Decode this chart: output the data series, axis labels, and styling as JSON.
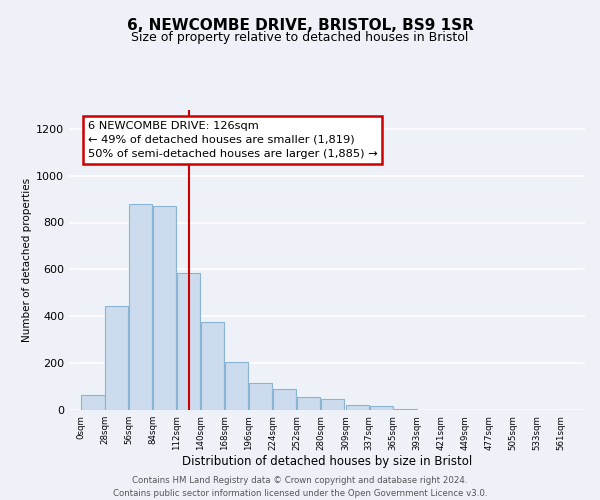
{
  "title": "6, NEWCOMBE DRIVE, BRISTOL, BS9 1SR",
  "subtitle": "Size of property relative to detached houses in Bristol",
  "xlabel": "Distribution of detached houses by size in Bristol",
  "ylabel": "Number of detached properties",
  "bar_left_edges": [
    0,
    28,
    56,
    84,
    112,
    140,
    168,
    196,
    224,
    252,
    280,
    309,
    337,
    365,
    393,
    421,
    449,
    477,
    505,
    533
  ],
  "bar_widths": [
    28,
    28,
    28,
    28,
    28,
    28,
    28,
    28,
    28,
    28,
    28,
    28,
    28,
    28,
    28,
    28,
    28,
    28,
    28,
    28
  ],
  "bar_heights": [
    65,
    445,
    880,
    870,
    585,
    375,
    205,
    115,
    90,
    55,
    45,
    20,
    15,
    5,
    2,
    0,
    0,
    0,
    0,
    0
  ],
  "bar_color": "#ccdcee",
  "bar_edgecolor": "#8ab4d4",
  "tick_labels": [
    "0sqm",
    "28sqm",
    "56sqm",
    "84sqm",
    "112sqm",
    "140sqm",
    "168sqm",
    "196sqm",
    "224sqm",
    "252sqm",
    "280sqm",
    "309sqm",
    "337sqm",
    "365sqm",
    "393sqm",
    "421sqm",
    "449sqm",
    "477sqm",
    "505sqm",
    "533sqm",
    "561sqm"
  ],
  "tick_positions": [
    0,
    28,
    56,
    84,
    112,
    140,
    168,
    196,
    224,
    252,
    280,
    309,
    337,
    365,
    393,
    421,
    449,
    477,
    505,
    533,
    561
  ],
  "ylim": [
    0,
    1280
  ],
  "xlim": [
    -14,
    589
  ],
  "yticks": [
    0,
    200,
    400,
    600,
    800,
    1000,
    1200
  ],
  "marker_x": 126,
  "marker_color": "#cc0000",
  "annotation_title": "6 NEWCOMBE DRIVE: 126sqm",
  "annotation_line1": "← 49% of detached houses are smaller (1,819)",
  "annotation_line2": "50% of semi-detached houses are larger (1,885) →",
  "annotation_box_facecolor": "#ffffff",
  "annotation_box_edgecolor": "#cc0000",
  "footer_line1": "Contains HM Land Registry data © Crown copyright and database right 2024.",
  "footer_line2": "Contains public sector information licensed under the Open Government Licence v3.0.",
  "bg_color": "#eef2f8",
  "plot_bg_color": "#eef2f8",
  "grid_color": "#ffffff",
  "title_fontsize": 11,
  "subtitle_fontsize": 9
}
